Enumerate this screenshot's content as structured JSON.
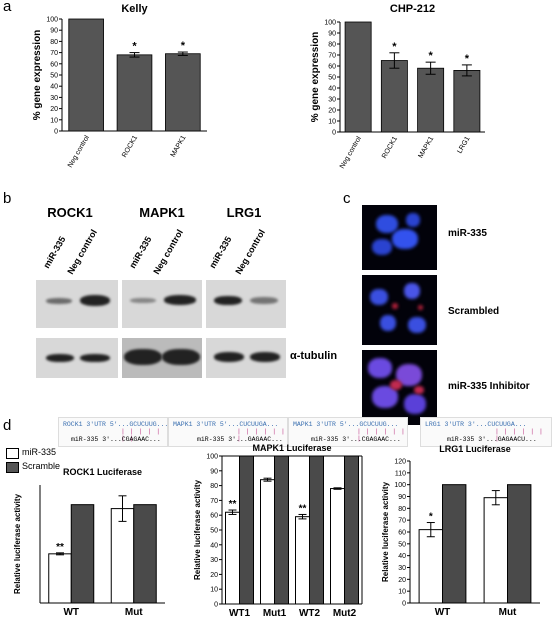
{
  "panels": {
    "a": "a",
    "b": "b",
    "c": "c",
    "d": "d"
  },
  "colors": {
    "white_bar": "#ffffff",
    "grey_bar": "#555555",
    "dark_bar": "#4a4a4a"
  },
  "panel_b": {
    "blots": [
      {
        "title": "ROCK1",
        "lanes": [
          "miR-335",
          "Neg control"
        ]
      },
      {
        "title": "MAPK1",
        "lanes": [
          "miR-335",
          "Neg control"
        ]
      },
      {
        "title": "LRG1",
        "lanes": [
          "miR-335",
          "Neg control"
        ]
      }
    ],
    "tubulin_label": "α-tubulin"
  },
  "panel_c": {
    "labels": [
      "miR-335",
      "Scrambled",
      "miR-335 Inhibitor"
    ]
  },
  "panel_d": {
    "legend": [
      "miR-335",
      "Scramble"
    ],
    "utr": [
      {
        "gene": "ROCK1 3'UTR",
        "top": "5'...GCUCUUG...",
        "bars": "| | | | | | |",
        "bottom_label": "miR-335",
        "bottom": "3'...CGAGAAC..."
      },
      {
        "gene": "MAPK1 3'UTR",
        "top": "5'...CUCUUGA...",
        "bars": "| | | | | | |",
        "bottom_label": "miR-335",
        "bottom": "3'...GAGAAC..."
      },
      {
        "gene": "MAPK1 3'UTR",
        "top": "5'...GCUCUUG...",
        "bars": "| | | | | | |",
        "bottom_label": "miR-335",
        "bottom": "3'...CGAGAAC..."
      },
      {
        "gene": "LRG1 3'UTR",
        "top": "3'...CUCUUGA...",
        "bars": "| | | | | | |",
        "bottom_label": "miR-335",
        "bottom": "3'...GAGAACU..."
      }
    ]
  },
  "chart_data": [
    {
      "type": "bar",
      "title": "Kelly",
      "ylabel": "% gene expression",
      "xlabel": "",
      "categories": [
        "Neg control",
        "ROCK1",
        "MAPK1"
      ],
      "values": [
        100,
        68,
        69
      ],
      "errors": [
        0,
        2,
        1.5
      ],
      "annotations": [
        "",
        "*",
        "*"
      ],
      "ylim": [
        0,
        100
      ],
      "yticks": [
        0,
        10,
        20,
        30,
        40,
        50,
        60,
        70,
        80,
        90,
        100
      ]
    },
    {
      "type": "bar",
      "title": "CHP-212",
      "ylabel": "% gene expression",
      "xlabel": "",
      "categories": [
        "Neg control",
        "ROCK1",
        "MAPK1",
        "LRG1"
      ],
      "values": [
        100,
        65,
        58,
        56
      ],
      "errors": [
        0,
        7,
        5.5,
        5
      ],
      "annotations": [
        "",
        "*",
        "*",
        "*"
      ],
      "ylim": [
        0,
        100
      ],
      "yticks": [
        0,
        10,
        20,
        30,
        40,
        50,
        60,
        70,
        80,
        90,
        100
      ]
    },
    {
      "type": "bar",
      "title": "ROCK1 Luciferase",
      "ylabel": "Relative luciferase activity",
      "xlabel": "",
      "categories": [
        "WT",
        "Mut"
      ],
      "series": [
        {
          "name": "miR-335",
          "values": [
            50,
            96
          ],
          "errors": [
            1,
            13
          ],
          "annotations": [
            "**",
            ""
          ]
        },
        {
          "name": "Scramble",
          "values": [
            100,
            100
          ],
          "errors": [
            0,
            0
          ],
          "annotations": [
            "",
            ""
          ]
        }
      ],
      "ylim": [
        0,
        120
      ]
    },
    {
      "type": "bar",
      "title": "MAPK1 Luciferase",
      "ylabel": "Relative luciferase activity",
      "xlabel": "",
      "categories": [
        "WT1",
        "Mut1",
        "WT2",
        "Mut2"
      ],
      "series": [
        {
          "name": "miR-335",
          "values": [
            62,
            84,
            59,
            78
          ],
          "errors": [
            1.5,
            1,
            1.5,
            0.5
          ],
          "annotations": [
            "**",
            "",
            "**",
            ""
          ]
        },
        {
          "name": "Scramble",
          "values": [
            100,
            100,
            100,
            100
          ],
          "errors": [
            0,
            0,
            0,
            0
          ],
          "annotations": [
            "",
            "",
            "",
            ""
          ]
        }
      ],
      "ylim": [
        0,
        100
      ],
      "yticks": [
        0,
        10,
        20,
        30,
        40,
        50,
        60,
        70,
        80,
        90,
        100
      ]
    },
    {
      "type": "bar",
      "title": "LRG1 Luciferase",
      "ylabel": "Relative luciferase activity",
      "xlabel": "",
      "categories": [
        "WT",
        "Mut"
      ],
      "series": [
        {
          "name": "miR-335",
          "values": [
            62,
            89
          ],
          "errors": [
            6,
            6
          ],
          "annotations": [
            "*",
            ""
          ]
        },
        {
          "name": "Scramble",
          "values": [
            100,
            100
          ],
          "errors": [
            0,
            0
          ],
          "annotations": [
            "",
            ""
          ]
        }
      ],
      "ylim": [
        0,
        120
      ],
      "yticks": [
        0,
        10,
        20,
        30,
        40,
        50,
        60,
        70,
        80,
        90,
        100,
        110,
        120
      ]
    }
  ]
}
